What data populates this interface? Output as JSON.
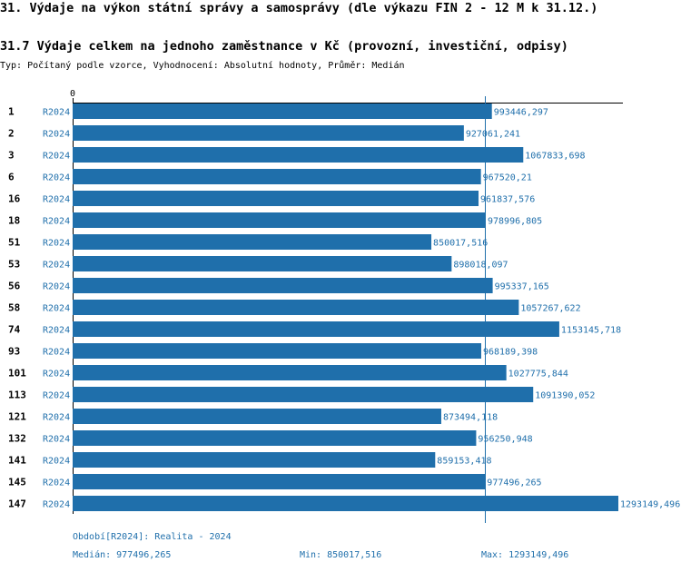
{
  "header": {
    "title": "31. Výdaje na výkon státní správy a samosprávy (dle výkazu FIN 2 - 12 M k 31.12.)",
    "subtitle": "31.7 Výdaje celkem na jednoho zaměstnance v Kč (provozní, investiční, odpisy)",
    "type_line": "Typ: Počítaný podle vzorce, Vyhodnocení: Absolutní hodnoty, Průměr: Medián"
  },
  "footer": {
    "period": "Období[R2024]: Realita - 2024",
    "median": "Medián: 977496,265",
    "min": "Min: 850017,516",
    "max": "Max: 1293149,496"
  },
  "chart_data": {
    "type": "bar",
    "orientation": "horizontal",
    "axis_zero_label": "0",
    "xlim": [
      0,
      1293149.496
    ],
    "median": 977496.265,
    "grid": false,
    "colors": {
      "bar": "#1f6fab",
      "label": "#1f6fab",
      "median_line": "#1f6fab"
    },
    "categories": [
      "1",
      "2",
      "3",
      "6",
      "16",
      "18",
      "51",
      "53",
      "56",
      "58",
      "74",
      "93",
      "101",
      "113",
      "121",
      "132",
      "141",
      "145",
      "147"
    ],
    "period_labels": [
      "R2024",
      "R2024",
      "R2024",
      "R2024",
      "R2024",
      "R2024",
      "R2024",
      "R2024",
      "R2024",
      "R2024",
      "R2024",
      "R2024",
      "R2024",
      "R2024",
      "R2024",
      "R2024",
      "R2024",
      "R2024",
      "R2024"
    ],
    "values": [
      993446.297,
      927061.241,
      1067833.698,
      967520.21,
      961837.576,
      978996.805,
      850017.516,
      898018.097,
      995337.165,
      1057267.622,
      1153145.718,
      968189.398,
      1027775.844,
      1091390.052,
      873494.118,
      956250.948,
      859153.418,
      977496.265,
      1293149.496
    ],
    "value_labels": [
      "993446,297",
      "927061,241",
      "1067833,698",
      "967520,21",
      "961837,576",
      "978996,805",
      "850017,516",
      "898018,097",
      "995337,165",
      "1057267,622",
      "1153145,718",
      "968189,398",
      "1027775,844",
      "1091390,052",
      "873494,118",
      "956250,948",
      "859153,418",
      "977496,265",
      "1293149,496"
    ]
  }
}
